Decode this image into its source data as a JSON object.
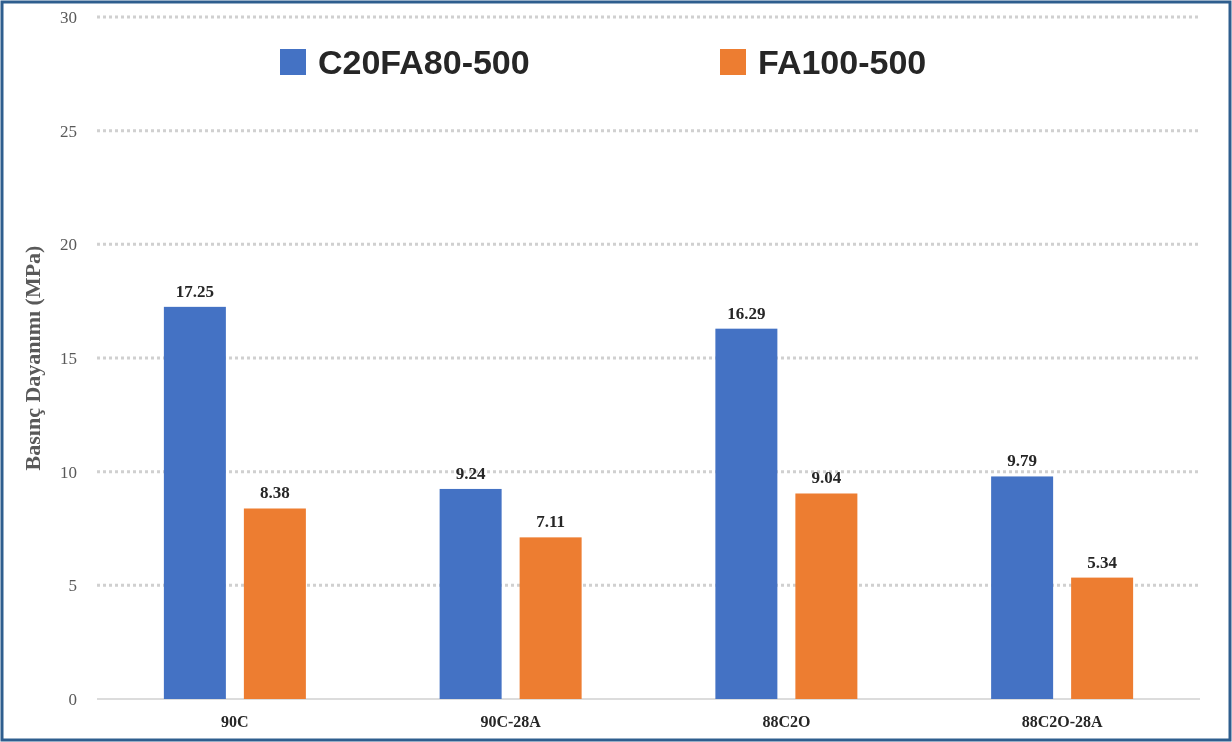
{
  "chart_data": {
    "type": "bar",
    "ylabel": "Basınç Dayanımı (MPa)",
    "categories": [
      "90C",
      "90C-28A",
      "88C2O",
      "88C2O-28A"
    ],
    "series": [
      {
        "name": "C20FA80-500",
        "color": "#4472c4",
        "values": [
          17.25,
          9.24,
          16.29,
          9.79
        ]
      },
      {
        "name": "FA100-500",
        "color": "#ed7d31",
        "values": [
          8.38,
          7.11,
          9.04,
          5.34
        ]
      }
    ],
    "ylim": [
      0,
      30
    ],
    "yticks": [
      0,
      5,
      10,
      15,
      20,
      25,
      30
    ],
    "grid": "y",
    "legend": "top",
    "data_labels": true
  }
}
